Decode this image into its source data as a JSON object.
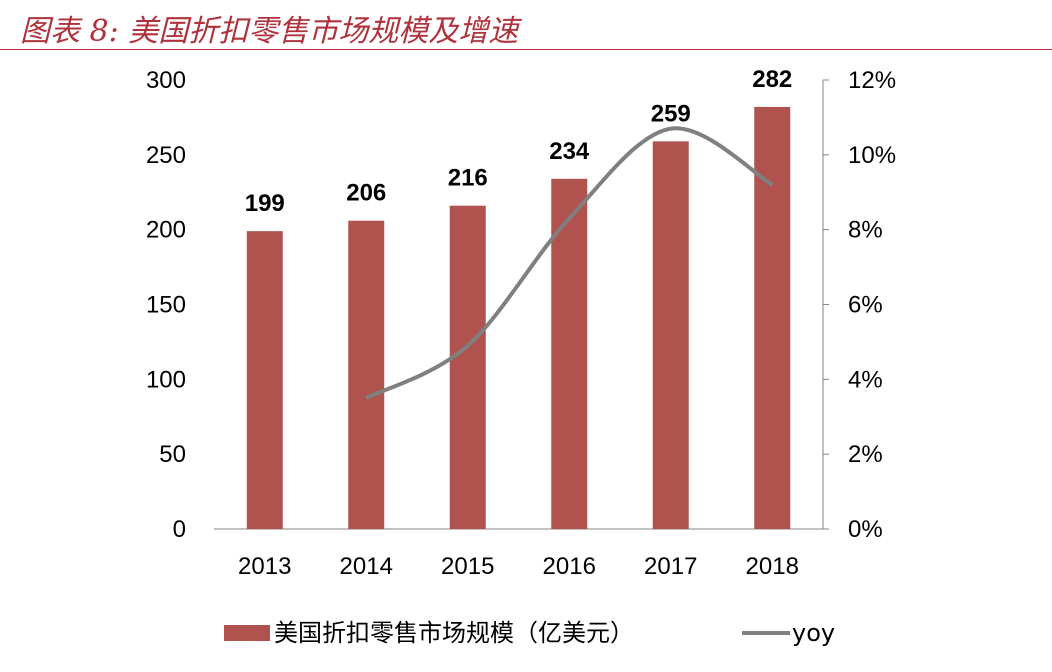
{
  "figure": {
    "label": "图表 8:",
    "title": "美国折扣零售市场规模及增速"
  },
  "chart_data": {
    "type": "bar",
    "categories": [
      "2013",
      "2014",
      "2015",
      "2016",
      "2017",
      "2018"
    ],
    "series": [
      {
        "name": "美国折扣零售市场规模（亿美元）",
        "type": "bar",
        "axis": "left",
        "color": "#B0534E",
        "values": [
          199,
          206,
          216,
          234,
          259,
          282
        ],
        "labels": [
          "199",
          "206",
          "216",
          "234",
          "259",
          "282"
        ]
      },
      {
        "name": "yoy",
        "type": "line",
        "axis": "right",
        "color": "#808080",
        "smooth": true,
        "values": [
          null,
          0.035,
          0.049,
          0.083,
          0.107,
          0.092
        ]
      }
    ],
    "y_left": {
      "min": 0,
      "max": 300,
      "ticks": [
        "0",
        "50",
        "100",
        "150",
        "200",
        "250",
        "300"
      ]
    },
    "y_right": {
      "min": 0,
      "max": 0.12,
      "ticks": [
        "0%",
        "2%",
        "4%",
        "6%",
        "8%",
        "10%",
        "12%"
      ]
    },
    "grid": false,
    "legend_position": "bottom"
  }
}
